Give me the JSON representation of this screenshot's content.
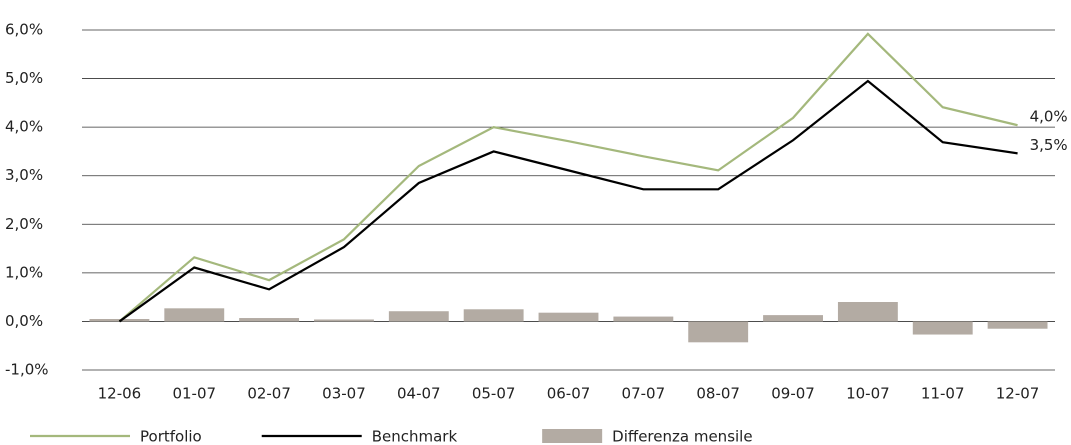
{
  "chart_data": {
    "type": "line",
    "categories": [
      "12-06",
      "01-07",
      "02-07",
      "03-07",
      "04-07",
      "05-07",
      "06-07",
      "07-07",
      "08-07",
      "09-07",
      "10-07",
      "11-07",
      "12-07"
    ],
    "series": [
      {
        "name": "Portfolio",
        "type": "line",
        "color": "#a4b87c",
        "values": [
          0.0,
          1.32,
          0.85,
          1.69,
          3.2,
          4.0,
          3.71,
          3.4,
          3.11,
          4.19,
          5.92,
          4.41,
          4.04
        ],
        "value_labels": [
          null,
          null,
          null,
          null,
          null,
          null,
          null,
          null,
          null,
          null,
          null,
          null,
          "4,0%"
        ]
      },
      {
        "name": "Benchmark",
        "type": "line",
        "color": "#000000",
        "values": [
          0.0,
          1.11,
          0.66,
          1.53,
          2.85,
          3.5,
          3.11,
          2.72,
          2.72,
          3.73,
          4.95,
          3.69,
          3.46
        ],
        "value_labels": [
          null,
          null,
          null,
          null,
          null,
          null,
          null,
          null,
          null,
          null,
          null,
          null,
          "3,5%"
        ]
      },
      {
        "name": "Differenza mensile",
        "type": "bar",
        "color": "#b3aba3",
        "values": [
          0.05,
          0.27,
          0.07,
          0.04,
          0.21,
          0.25,
          0.18,
          0.1,
          -0.43,
          0.13,
          0.4,
          -0.27,
          -0.15
        ]
      }
    ],
    "ylim": [
      -1.0,
      6.0
    ],
    "yticks": [
      {
        "value": -1.0,
        "label": "-1,0%"
      },
      {
        "value": 0.0,
        "label": "0,0%"
      },
      {
        "value": 1.0,
        "label": "1,0%"
      },
      {
        "value": 2.0,
        "label": "2,0%"
      },
      {
        "value": 3.0,
        "label": "3,0%"
      },
      {
        "value": 4.0,
        "label": "4,0%"
      },
      {
        "value": 5.0,
        "label": "5,0%"
      },
      {
        "value": 6.0,
        "label": "6,0%"
      }
    ],
    "grid": true,
    "legend": "bottom"
  }
}
